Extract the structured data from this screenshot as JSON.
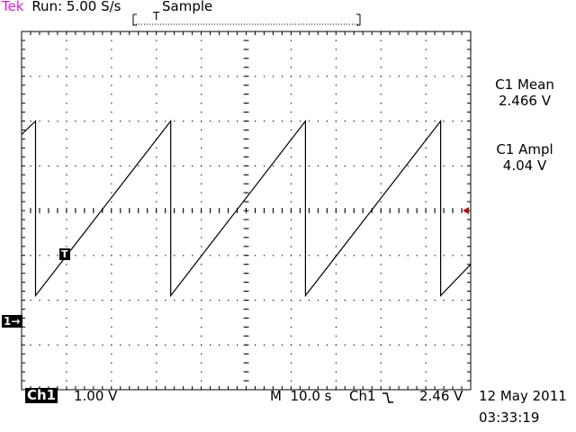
{
  "header": {
    "brand": "Tek",
    "run_status": "Run: 5.00 S/s",
    "acquisition_mode": "Sample",
    "trigger_marker": "T"
  },
  "measurements": [
    {
      "label": "C1 Mean",
      "value": "2.466 V"
    },
    {
      "label": "C1 Ampl",
      "value": "4.04 V"
    }
  ],
  "channel_marker": "1→",
  "trigger_point_marker": "T",
  "footer": {
    "channel": "Ch1",
    "volts_per_div": "1.00 V",
    "timebase": "M  10.0 s",
    "trigger_source": "Ch1",
    "trigger_slope_icon": "falling-edge-icon",
    "trigger_level": "2.46 V",
    "date": "12 May 2011",
    "time": "03:33:19"
  },
  "chart_data": {
    "type": "line",
    "x_divisions": 10,
    "y_divisions": 8,
    "grid": true,
    "time_per_div_s": 10.0,
    "volts_per_div": 1.0,
    "ylim_divs": [
      -4,
      4
    ],
    "xlim_s": [
      0,
      100
    ],
    "ground_level_div": -2.5,
    "trace_color": "#000000",
    "series": [
      {
        "points_s_div": [
          [
            0,
            1.7
          ],
          [
            3.1,
            2.0
          ],
          [
            3.1,
            -1.9
          ],
          [
            33.2,
            2.0
          ],
          [
            33.2,
            -1.9
          ],
          [
            63.2,
            2.0
          ],
          [
            63.2,
            -1.9
          ],
          [
            93.3,
            2.0
          ],
          [
            93.3,
            -1.9
          ],
          [
            100,
            -1.2
          ]
        ]
      }
    ]
  }
}
